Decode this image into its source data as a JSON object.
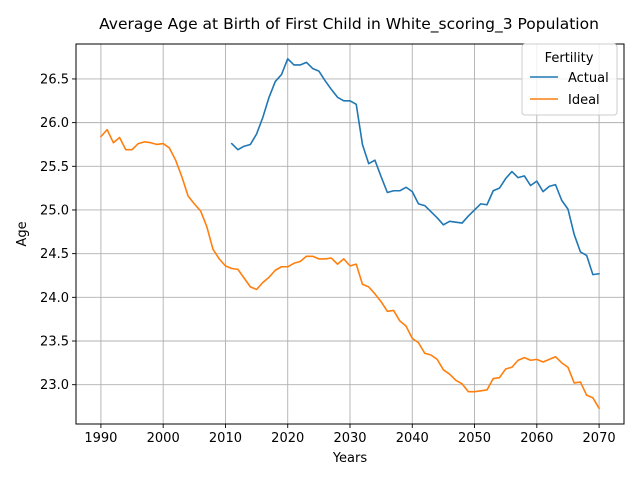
{
  "chart_data": {
    "type": "line",
    "title": "Average Age at Birth of First Child in White_scoring_3 Population",
    "xlabel": "Years",
    "ylabel": "Age",
    "xlim": [
      1986,
      2074
    ],
    "ylim": [
      22.55,
      26.9
    ],
    "xticks": [
      1990,
      2000,
      2010,
      2020,
      2030,
      2040,
      2050,
      2060,
      2070
    ],
    "yticks": [
      23.0,
      23.5,
      24.0,
      24.5,
      25.0,
      25.5,
      26.0,
      26.5
    ],
    "ytick_format": "0.0",
    "grid": true,
    "legend": {
      "title": "Fertility",
      "location": "top-right"
    },
    "series": [
      {
        "name": "Actual",
        "color": "#1f77b4",
        "x": [
          2011,
          2012,
          2013,
          2014,
          2015,
          2016,
          2017,
          2018,
          2019,
          2020,
          2021,
          2022,
          2023,
          2024,
          2025,
          2026,
          2027,
          2028,
          2029,
          2030,
          2031,
          2032,
          2033,
          2034,
          2035,
          2036,
          2037,
          2038,
          2039,
          2040,
          2041,
          2042,
          2043,
          2044,
          2045,
          2046,
          2047,
          2048,
          2049,
          2050,
          2051,
          2052,
          2053,
          2054,
          2055,
          2056,
          2057,
          2058,
          2059,
          2060,
          2061,
          2062,
          2063,
          2064,
          2065,
          2066,
          2067,
          2068,
          2069,
          2070
        ],
        "values": [
          25.76,
          25.69,
          25.73,
          25.75,
          25.87,
          26.06,
          26.29,
          26.47,
          26.55,
          26.73,
          26.66,
          26.66,
          26.69,
          26.62,
          26.59,
          26.48,
          26.38,
          26.29,
          26.25,
          26.25,
          26.21,
          25.75,
          25.53,
          25.57,
          25.38,
          25.2,
          25.22,
          25.22,
          25.26,
          25.21,
          25.07,
          25.05,
          24.98,
          24.91,
          24.83,
          24.87,
          24.86,
          24.85,
          24.93,
          25.0,
          25.07,
          25.06,
          25.22,
          25.25,
          25.36,
          25.44,
          25.37,
          25.39,
          25.28,
          25.33,
          25.21,
          25.27,
          25.29,
          25.11,
          25.01,
          24.72,
          24.52,
          24.48,
          24.26,
          24.27
        ]
      },
      {
        "name": "Ideal",
        "color": "#ff7f0e",
        "x": [
          1990,
          1991,
          1992,
          1993,
          1994,
          1995,
          1996,
          1997,
          1998,
          1999,
          2000,
          2001,
          2002,
          2003,
          2004,
          2005,
          2006,
          2007,
          2008,
          2009,
          2010,
          2011,
          2012,
          2013,
          2014,
          2015,
          2016,
          2017,
          2018,
          2019,
          2020,
          2021,
          2022,
          2023,
          2024,
          2025,
          2026,
          2027,
          2028,
          2029,
          2030,
          2031,
          2032,
          2033,
          2034,
          2035,
          2036,
          2037,
          2038,
          2039,
          2040,
          2041,
          2042,
          2043,
          2044,
          2045,
          2046,
          2047,
          2048,
          2049,
          2050,
          2051,
          2052,
          2053,
          2054,
          2055,
          2056,
          2057,
          2058,
          2059,
          2060,
          2061,
          2062,
          2063,
          2064,
          2065,
          2066,
          2067,
          2068,
          2069,
          2070
        ],
        "values": [
          25.84,
          25.92,
          25.77,
          25.83,
          25.69,
          25.69,
          25.76,
          25.78,
          25.77,
          25.75,
          25.76,
          25.71,
          25.57,
          25.38,
          25.16,
          25.07,
          24.99,
          24.81,
          24.55,
          24.44,
          24.36,
          24.33,
          24.32,
          24.22,
          24.12,
          24.09,
          24.17,
          24.23,
          24.31,
          24.35,
          24.35,
          24.39,
          24.41,
          24.47,
          24.47,
          24.44,
          24.44,
          24.45,
          24.38,
          24.44,
          24.36,
          24.38,
          24.15,
          24.12,
          24.04,
          23.95,
          23.84,
          23.85,
          23.73,
          23.67,
          23.53,
          23.48,
          23.36,
          23.34,
          23.29,
          23.17,
          23.12,
          23.05,
          23.01,
          22.92,
          22.92,
          22.93,
          22.94,
          23.07,
          23.08,
          23.18,
          23.2,
          23.28,
          23.31,
          23.28,
          23.29,
          23.26,
          23.29,
          23.32,
          23.25,
          23.2,
          23.02,
          23.03,
          22.88,
          22.85,
          22.73
        ]
      }
    ]
  }
}
